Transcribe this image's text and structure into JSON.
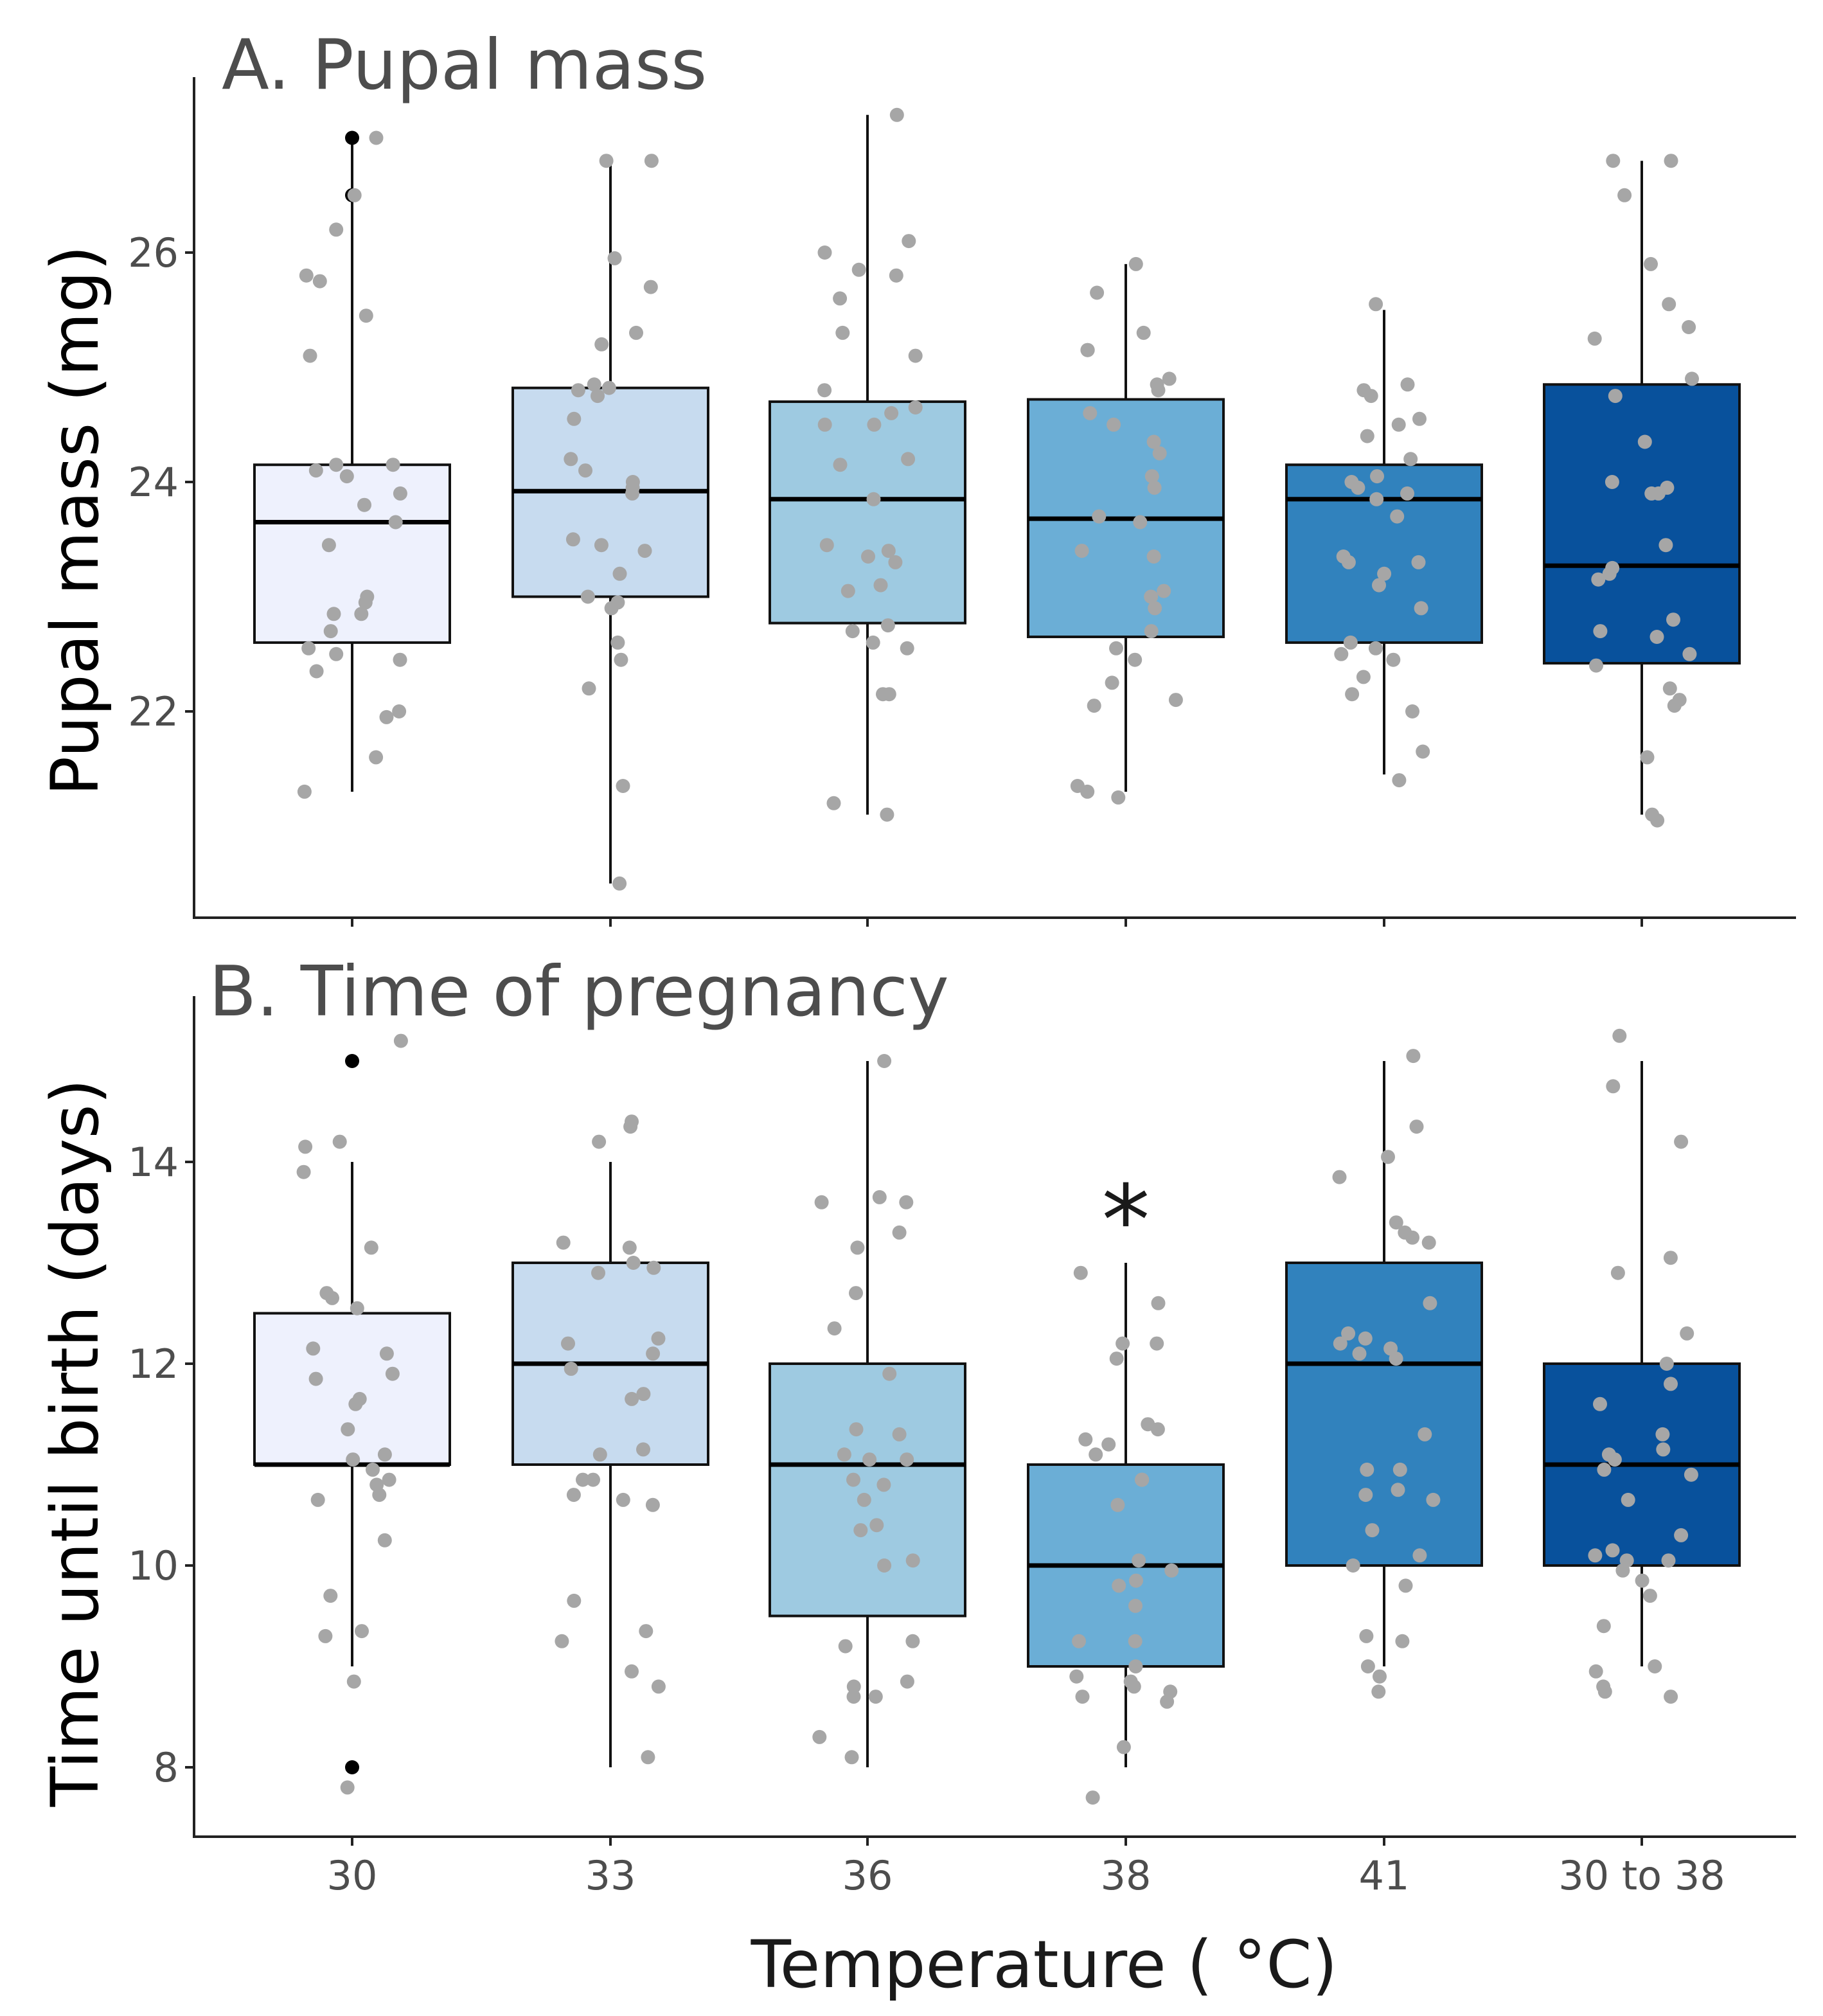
{
  "figure": {
    "x_axis_title": "Temperature (  °C)",
    "categories": [
      "30",
      "33",
      "36",
      "38",
      "41",
      "30 to 38"
    ],
    "box_colors": [
      "#eef1fd",
      "#c7dbef",
      "#9ecae1",
      "#6baed6",
      "#3182bd",
      "#08519c"
    ],
    "jitter_color": "#a6a6a6",
    "outlier_color": "#000000"
  },
  "chart_data": [
    {
      "type": "box",
      "title": "A. Pupal mass",
      "xlabel": "Temperature (oC)",
      "ylabel": "Pupal mass (mg)",
      "ylim": [
        20.0,
        27.6
      ],
      "yticks": [
        22,
        24,
        26
      ],
      "categories": [
        "30",
        "33",
        "36",
        "38",
        "41",
        "30 to 38"
      ],
      "boxes": [
        {
          "q1": 22.6,
          "median": 23.65,
          "q3": 24.15,
          "whisker_low": 21.3,
          "whisker_high": 27.0,
          "outliers": [
            27.0,
            26.5
          ]
        },
        {
          "q1": 23.0,
          "median": 23.92,
          "q3": 24.82,
          "whisker_low": 20.5,
          "whisker_high": 26.8,
          "outliers": []
        },
        {
          "q1": 22.77,
          "median": 23.85,
          "q3": 24.7,
          "whisker_low": 21.1,
          "whisker_high": 27.2,
          "outliers": []
        },
        {
          "q1": 22.65,
          "median": 23.68,
          "q3": 24.72,
          "whisker_low": 21.3,
          "whisker_high": 25.9,
          "outliers": []
        },
        {
          "q1": 22.6,
          "median": 23.85,
          "q3": 24.15,
          "whisker_low": 21.45,
          "whisker_high": 25.5,
          "outliers": []
        },
        {
          "q1": 22.42,
          "median": 23.27,
          "q3": 24.85,
          "whisker_low": 21.1,
          "whisker_high": 26.8,
          "outliers": []
        }
      ],
      "points": [
        [
          27.0,
          26.5,
          26.2,
          25.8,
          25.75,
          25.45,
          25.1,
          24.15,
          24.15,
          24.1,
          24.05,
          23.9,
          23.8,
          23.65,
          23.45,
          23.0,
          22.95,
          22.85,
          22.85,
          22.7,
          22.55,
          22.5,
          22.45,
          22.35,
          22.0,
          21.95,
          21.6,
          21.3
        ],
        [
          26.8,
          26.8,
          25.95,
          25.7,
          25.3,
          25.2,
          24.85,
          24.82,
          24.8,
          24.75,
          24.55,
          24.2,
          24.1,
          24.0,
          23.95,
          23.9,
          23.5,
          23.45,
          23.4,
          23.2,
          23.0,
          22.95,
          22.9,
          22.6,
          22.45,
          22.2,
          21.35,
          20.5
        ],
        [
          27.2,
          26.1,
          26.0,
          25.85,
          25.8,
          25.6,
          25.3,
          25.1,
          24.8,
          24.65,
          24.6,
          24.5,
          24.5,
          24.2,
          24.15,
          23.85,
          23.45,
          23.4,
          23.35,
          23.3,
          23.1,
          23.05,
          22.75,
          22.7,
          22.6,
          22.55,
          22.15,
          22.15,
          21.2,
          21.1
        ],
        [
          25.9,
          25.65,
          25.3,
          25.15,
          25.15,
          24.9,
          24.85,
          24.8,
          24.6,
          24.5,
          24.35,
          24.25,
          24.05,
          23.95,
          23.7,
          23.65,
          23.4,
          23.35,
          23.05,
          23.0,
          22.9,
          22.7,
          22.55,
          22.45,
          22.25,
          22.1,
          22.05,
          21.35,
          21.3,
          21.25
        ],
        [
          25.55,
          24.85,
          24.8,
          24.75,
          24.55,
          24.5,
          24.4,
          24.2,
          24.05,
          24.0,
          23.95,
          23.9,
          23.85,
          23.7,
          23.35,
          23.3,
          23.3,
          23.2,
          23.1,
          22.9,
          22.6,
          22.55,
          22.5,
          22.45,
          22.3,
          22.15,
          22.0,
          21.65,
          21.4
        ],
        [
          26.8,
          26.8,
          26.5,
          25.9,
          25.55,
          25.35,
          25.25,
          24.9,
          24.75,
          24.35,
          24.0,
          23.95,
          23.9,
          23.9,
          23.45,
          23.25,
          23.2,
          23.15,
          22.8,
          22.7,
          22.65,
          22.5,
          22.4,
          22.2,
          22.1,
          22.05,
          21.6,
          21.1,
          21.05
        ]
      ]
    },
    {
      "type": "box",
      "title": "B. Time of pregnancy",
      "xlabel": "Temperature (oC)",
      "ylabel": "Time until birth (days)",
      "ylim": [
        7.3,
        15.6
      ],
      "yticks": [
        8,
        10,
        12,
        14
      ],
      "categories": [
        "30",
        "33",
        "36",
        "38",
        "41",
        "30 to 38"
      ],
      "significance": [
        {
          "category": "38",
          "label": "*"
        }
      ],
      "boxes": [
        {
          "q1": 11.0,
          "median": 11.0,
          "q3": 12.5,
          "whisker_low": 9.0,
          "whisker_high": 14.0,
          "outliers": [
            15.0,
            8.0
          ]
        },
        {
          "q1": 11.0,
          "median": 12.0,
          "q3": 13.0,
          "whisker_low": 8.0,
          "whisker_high": 14.0,
          "outliers": []
        },
        {
          "q1": 9.5,
          "median": 11.0,
          "q3": 12.0,
          "whisker_low": 8.0,
          "whisker_high": 15.0,
          "outliers": []
        },
        {
          "q1": 9.0,
          "median": 10.0,
          "q3": 11.0,
          "whisker_low": 8.0,
          "whisker_high": 13.0,
          "outliers": []
        },
        {
          "q1": 10.0,
          "median": 12.0,
          "q3": 13.0,
          "whisker_low": 9.0,
          "whisker_high": 15.0,
          "outliers": []
        },
        {
          "q1": 10.0,
          "median": 11.0,
          "q3": 12.0,
          "whisker_low": 9.0,
          "whisker_high": 15.0,
          "outliers": []
        }
      ],
      "points": [
        [
          15.2,
          14.2,
          14.15,
          13.9,
          13.15,
          12.7,
          12.65,
          12.55,
          12.15,
          12.1,
          11.9,
          11.85,
          11.65,
          11.6,
          11.35,
          11.1,
          11.05,
          10.95,
          10.85,
          10.8,
          10.7,
          10.65,
          10.25,
          9.7,
          9.35,
          9.3,
          8.85,
          7.8
        ],
        [
          14.4,
          14.35,
          14.2,
          13.2,
          13.15,
          13.0,
          12.95,
          12.9,
          12.25,
          12.2,
          12.1,
          11.95,
          11.7,
          11.65,
          11.15,
          11.1,
          10.85,
          10.85,
          10.7,
          10.65,
          10.6,
          9.65,
          9.35,
          9.25,
          8.95,
          8.8,
          8.1
        ],
        [
          15.0,
          13.65,
          13.6,
          13.6,
          13.3,
          13.15,
          12.7,
          12.35,
          11.9,
          11.35,
          11.3,
          11.1,
          11.05,
          11.05,
          10.85,
          10.8,
          10.65,
          10.4,
          10.35,
          10.05,
          10.0,
          9.25,
          9.2,
          8.85,
          8.8,
          8.7,
          8.7,
          8.3,
          8.1
        ],
        [
          12.9,
          12.6,
          12.2,
          12.2,
          12.05,
          11.4,
          11.35,
          11.25,
          11.2,
          11.1,
          10.85,
          10.85,
          10.6,
          10.05,
          9.95,
          9.85,
          9.8,
          9.6,
          9.25,
          9.25,
          9.0,
          8.9,
          8.85,
          8.8,
          8.75,
          8.7,
          8.65,
          8.2,
          7.7
        ],
        [
          15.05,
          14.35,
          14.05,
          13.85,
          13.4,
          13.3,
          13.25,
          13.2,
          12.6,
          12.3,
          12.25,
          12.2,
          12.15,
          12.1,
          12.05,
          11.3,
          10.95,
          10.95,
          10.75,
          10.7,
          10.65,
          10.35,
          10.1,
          10.0,
          9.8,
          9.3,
          9.25,
          9.0,
          8.9,
          8.75
        ],
        [
          15.25,
          14.75,
          14.2,
          13.05,
          12.9,
          12.3,
          12.0,
          11.8,
          11.6,
          11.3,
          11.15,
          11.1,
          11.05,
          10.95,
          10.9,
          10.65,
          10.3,
          10.15,
          10.1,
          10.05,
          10.05,
          9.95,
          9.85,
          9.7,
          9.4,
          9.0,
          8.95,
          8.8,
          8.75,
          8.7
        ]
      ]
    }
  ]
}
